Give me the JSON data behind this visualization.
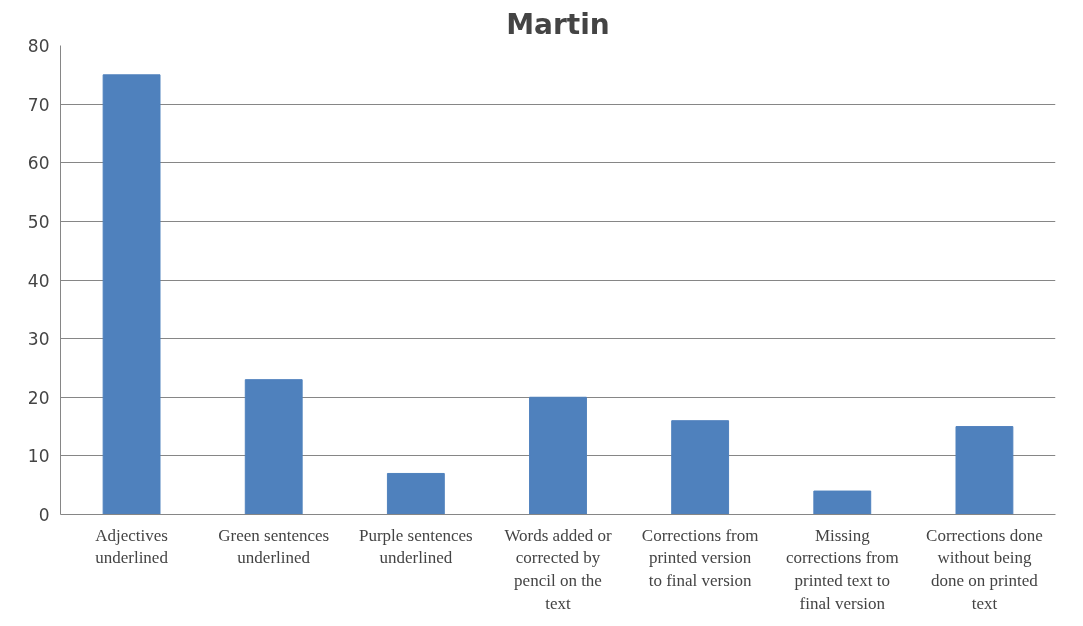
{
  "chart_data": {
    "type": "bar",
    "title": "Martin",
    "categories": [
      "Adjectives underlined",
      "Green sentences underlined",
      "Purple sentences underlined",
      "Words added or corrected by pencil on the text",
      "Corrections from printed version to final version",
      "Missing corrections from printed text to final version",
      "Corrections done without being done on printed text"
    ],
    "values": [
      75,
      23,
      7,
      20,
      16,
      4,
      15
    ],
    "color": "#4f81bd",
    "ylim": [
      0,
      80
    ],
    "yticks": [
      0,
      10,
      20,
      30,
      40,
      50,
      60,
      70,
      80
    ],
    "grid": "y"
  }
}
